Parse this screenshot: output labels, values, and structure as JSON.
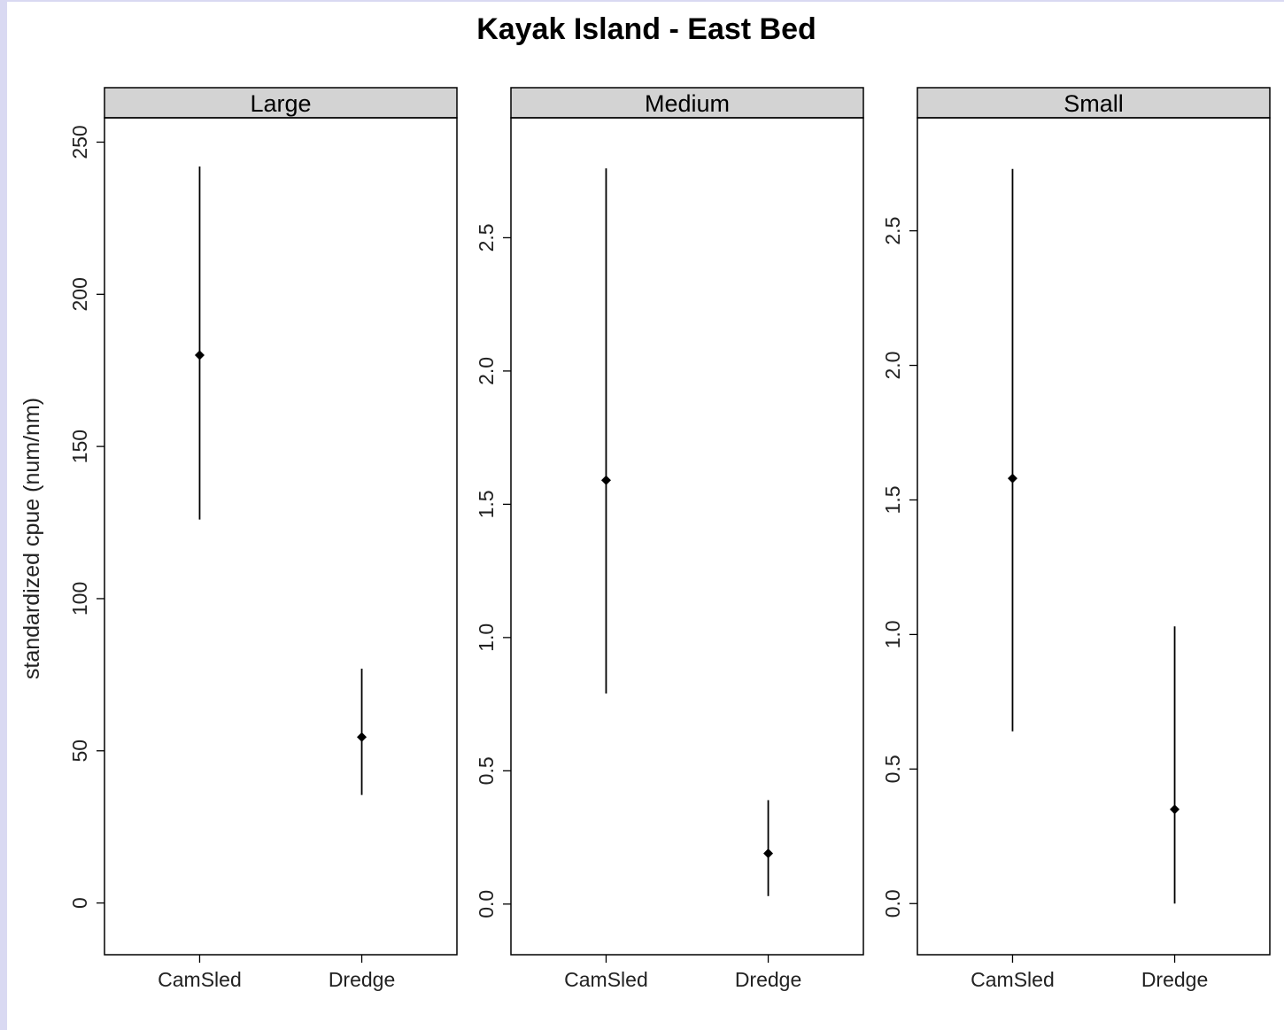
{
  "chart_data": {
    "type": "scatter",
    "title": "Kayak Island - East Bed",
    "ylabel": "standardized cpue (num/nm)",
    "xlabel": "",
    "categories": [
      "CamSled",
      "Dredge"
    ],
    "grid": false,
    "panels": [
      {
        "name": "Large",
        "ylim": [
          -17,
          258
        ],
        "yticks": [
          0,
          50,
          100,
          150,
          200,
          250
        ],
        "ytick_labels": [
          "0",
          "50",
          "100",
          "150",
          "200",
          "250"
        ],
        "points": [
          {
            "category": "CamSled",
            "estimate": 180,
            "lower": 126,
            "upper": 242
          },
          {
            "category": "Dredge",
            "estimate": 54.5,
            "lower": 35.5,
            "upper": 77
          }
        ]
      },
      {
        "name": "Medium",
        "ylim": [
          -0.19,
          2.95
        ],
        "yticks": [
          0.0,
          0.5,
          1.0,
          1.5,
          2.0,
          2.5
        ],
        "ytick_labels": [
          "0.0",
          "0.5",
          "1.0",
          "1.5",
          "2.0",
          "2.5"
        ],
        "points": [
          {
            "category": "CamSled",
            "estimate": 1.59,
            "lower": 0.79,
            "upper": 2.76
          },
          {
            "category": "Dredge",
            "estimate": 0.19,
            "lower": 0.03,
            "upper": 0.39
          }
        ]
      },
      {
        "name": "Small",
        "ylim": [
          -0.19,
          2.92
        ],
        "yticks": [
          0.0,
          0.5,
          1.0,
          1.5,
          2.0,
          2.5
        ],
        "ytick_labels": [
          "0.0",
          "0.5",
          "1.0",
          "1.5",
          "2.0",
          "2.5"
        ],
        "points": [
          {
            "category": "CamSled",
            "estimate": 1.58,
            "lower": 0.64,
            "upper": 2.73
          },
          {
            "category": "Dredge",
            "estimate": 0.35,
            "lower": 0.0,
            "upper": 1.03
          }
        ]
      }
    ]
  },
  "colors": {
    "strip_fill": "#d3d3d3",
    "point": "#000000",
    "page_border": "#d9d9f2"
  }
}
